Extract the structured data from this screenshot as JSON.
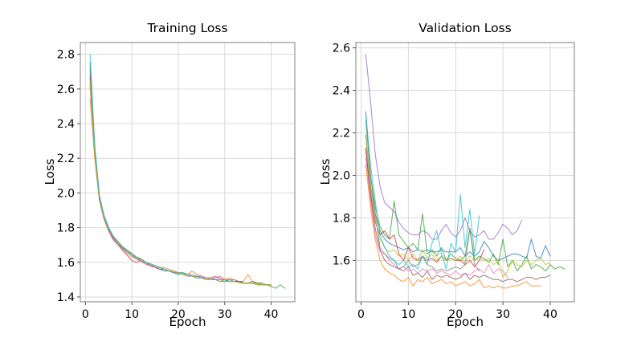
{
  "figure": {
    "background": "#ffffff",
    "grid_color": "#d9d9d9",
    "spine_color": "#7f7f7f",
    "tick_color": "#4d4d4d",
    "text_color": "#000000",
    "line_opacity": 0.72,
    "line_width": 1.1
  },
  "chart_data": [
    {
      "type": "line",
      "title": "Training Loss",
      "xlabel": "Epoch",
      "ylabel": "Loss",
      "xlim": [
        -1.1,
        45.1
      ],
      "ylim": [
        1.372,
        2.868
      ],
      "xticks": [
        0,
        10,
        20,
        30,
        40
      ],
      "xticklabels": [
        "0",
        "10",
        "20",
        "30",
        "40"
      ],
      "yticks": [
        1.4,
        1.6,
        1.8,
        2.0,
        2.2,
        2.4,
        2.6,
        2.8
      ],
      "yticklabels": [
        "1.4",
        "1.6",
        "1.8",
        "2.0",
        "2.2",
        "2.4",
        "2.6",
        "2.8"
      ],
      "grid": true,
      "legend": "none",
      "x_start": 1,
      "series": [
        {
          "color": "#1f77b4",
          "values": [
            2.75,
            2.25,
            1.98,
            1.86,
            1.79,
            1.74,
            1.71,
            1.68,
            1.66,
            1.64,
            1.62,
            1.61,
            1.6,
            1.58,
            1.57,
            1.56,
            1.55,
            1.55,
            1.54,
            1.53,
            1.54,
            1.53,
            1.52,
            1.51,
            1.51,
            1.5,
            1.5,
            1.5,
            1.49,
            1.49,
            1.5,
            1.49,
            1.49,
            1.48,
            1.48,
            1.48,
            1.48,
            1.47,
            1.47,
            1.47
          ]
        },
        {
          "color": "#ff7f0e",
          "values": [
            2.54,
            2.2,
            1.96,
            1.85,
            1.78,
            1.74,
            1.71,
            1.69,
            1.67,
            1.65,
            1.63,
            1.62,
            1.6,
            1.59,
            1.58,
            1.57,
            1.57,
            1.56,
            1.55,
            1.54,
            1.53,
            1.53,
            1.55,
            1.53,
            1.52,
            1.51,
            1.51,
            1.52,
            1.5,
            1.5,
            1.51,
            1.5,
            1.49,
            1.49,
            1.53,
            1.49,
            1.48,
            1.48
          ]
        },
        {
          "color": "#2ca02c",
          "values": [
            2.72,
            2.26,
            1.98,
            1.87,
            1.8,
            1.75,
            1.72,
            1.69,
            1.66,
            1.65,
            1.63,
            1.61,
            1.6,
            1.59,
            1.58,
            1.57,
            1.56,
            1.55,
            1.55,
            1.54,
            1.54,
            1.53,
            1.52,
            1.52,
            1.51,
            1.51,
            1.51,
            1.5,
            1.5,
            1.5,
            1.49,
            1.49,
            1.49,
            1.48,
            1.48,
            1.49,
            1.48,
            1.48,
            1.47,
            1.46,
            1.45,
            1.47,
            1.45
          ]
        },
        {
          "color": "#d62728",
          "values": [
            2.67,
            2.23,
            1.96,
            1.85,
            1.78,
            1.73,
            1.7,
            1.67,
            1.64,
            1.61,
            1.6,
            1.61,
            1.59,
            1.58,
            1.57,
            1.56,
            1.56,
            1.55,
            1.54,
            1.54,
            1.53,
            1.53,
            1.52,
            1.52,
            1.51,
            1.51
          ]
        },
        {
          "color": "#9467bd",
          "values": [
            2.69,
            2.25,
            1.98,
            1.86,
            1.79,
            1.75,
            1.71,
            1.69,
            1.67,
            1.65,
            1.63,
            1.62,
            1.6,
            1.59,
            1.58,
            1.57,
            1.56,
            1.55,
            1.55,
            1.54,
            1.53,
            1.53,
            1.52,
            1.52,
            1.52,
            1.51,
            1.51,
            1.51,
            1.52,
            1.5,
            1.5,
            1.5,
            1.49,
            1.49
          ]
        },
        {
          "color": "#8c564b",
          "values": [
            2.63,
            2.22,
            1.97,
            1.86,
            1.79,
            1.74,
            1.71,
            1.68,
            1.66,
            1.64,
            1.63,
            1.61,
            1.6,
            1.59,
            1.58,
            1.57,
            1.56,
            1.55,
            1.54,
            1.54,
            1.53,
            1.52,
            1.52,
            1.52,
            1.51,
            1.51,
            1.5,
            1.5,
            1.5,
            1.49,
            1.49,
            1.49,
            1.49,
            1.48,
            1.48,
            1.48,
            1.47,
            1.47,
            1.47,
            1.47
          ]
        },
        {
          "color": "#e377c2",
          "values": [
            2.61,
            2.23,
            1.97,
            1.85,
            1.78,
            1.74,
            1.7,
            1.68,
            1.65,
            1.63,
            1.62,
            1.6,
            1.59,
            1.59,
            1.57,
            1.57,
            1.56,
            1.55,
            1.54,
            1.54,
            1.53,
            1.53,
            1.52,
            1.52,
            1.52,
            1.51,
            1.51,
            1.52,
            1.51,
            1.5,
            1.5
          ]
        },
        {
          "color": "#7f7f7f",
          "values": [
            2.66,
            2.24,
            1.97,
            1.86,
            1.79,
            1.74,
            1.71,
            1.68,
            1.66,
            1.64,
            1.62,
            1.61,
            1.6,
            1.59,
            1.58,
            1.57,
            1.56,
            1.55,
            1.55,
            1.54,
            1.53,
            1.53,
            1.52,
            1.52,
            1.51
          ]
        },
        {
          "color": "#bcbd22",
          "values": [
            2.64,
            2.23,
            1.97,
            1.86,
            1.79,
            1.75,
            1.71,
            1.69,
            1.66,
            1.64,
            1.63,
            1.61,
            1.6,
            1.59,
            1.58,
            1.57,
            1.56,
            1.55,
            1.55,
            1.54,
            1.53,
            1.53,
            1.52,
            1.52,
            1.51,
            1.51,
            1.5,
            1.5,
            1.5,
            1.49,
            1.49,
            1.49,
            1.48,
            1.48,
            1.48,
            1.48,
            1.47,
            1.47,
            1.47,
            1.47
          ]
        },
        {
          "color": "#17becf",
          "values": [
            2.8,
            2.28,
            1.99,
            1.87,
            1.8,
            1.75,
            1.72,
            1.69,
            1.67,
            1.65,
            1.63,
            1.62,
            1.6,
            1.59,
            1.58,
            1.57,
            1.56,
            1.55,
            1.54,
            1.53,
            1.54,
            1.53,
            1.53,
            1.52,
            1.52
          ]
        }
      ]
    },
    {
      "type": "line",
      "title": "Validation Loss",
      "xlabel": "Epoch",
      "ylabel": "Loss",
      "xlim": [
        -1.1,
        45.1
      ],
      "ylim": [
        1.405,
        2.625
      ],
      "xticks": [
        0,
        10,
        20,
        30,
        40
      ],
      "xticklabels": [
        "0",
        "10",
        "20",
        "30",
        "40"
      ],
      "yticks": [
        1.6,
        1.8,
        2.0,
        2.2,
        2.4,
        2.6
      ],
      "yticklabels": [
        "1.6",
        "1.8",
        "2.0",
        "2.2",
        "2.4",
        "2.6"
      ],
      "grid": true,
      "legend": "none",
      "x_start": 1,
      "series": [
        {
          "color": "#1f77b4",
          "values": [
            2.19,
            1.95,
            1.82,
            1.74,
            1.7,
            1.68,
            1.67,
            1.66,
            1.65,
            1.66,
            1.64,
            1.65,
            1.64,
            1.65,
            1.64,
            1.64,
            1.65,
            1.64,
            1.64,
            1.64,
            1.66,
            1.62,
            1.64,
            1.62,
            1.64,
            1.69,
            1.66,
            1.62,
            1.6,
            1.61,
            1.62,
            1.63,
            1.63,
            1.62,
            1.61,
            1.7,
            1.62,
            1.61,
            1.67,
            1.62
          ]
        },
        {
          "color": "#ff7f0e",
          "values": [
            2.05,
            1.85,
            1.7,
            1.6,
            1.56,
            1.54,
            1.53,
            1.51,
            1.5,
            1.52,
            1.48,
            1.51,
            1.5,
            1.52,
            1.49,
            1.5,
            1.51,
            1.49,
            1.5,
            1.48,
            1.49,
            1.5,
            1.48,
            1.49,
            1.51,
            1.47,
            1.48,
            1.47,
            1.48,
            1.47,
            1.47,
            1.48,
            1.48,
            1.49,
            1.5,
            1.48,
            1.48,
            1.48
          ]
        },
        {
          "color": "#2ca02c",
          "values": [
            2.26,
            2.0,
            1.85,
            1.76,
            1.72,
            1.7,
            1.88,
            1.72,
            1.69,
            1.66,
            1.68,
            1.65,
            1.82,
            1.63,
            1.65,
            1.62,
            1.66,
            1.6,
            1.63,
            1.61,
            1.6,
            1.62,
            1.75,
            1.6,
            1.62,
            1.61,
            1.59,
            1.63,
            1.58,
            1.7,
            1.57,
            1.6,
            1.55,
            1.58,
            1.62,
            1.56,
            1.58,
            1.57,
            1.55,
            1.58,
            1.56,
            1.57,
            1.56
          ]
        },
        {
          "color": "#d62728",
          "values": [
            2.13,
            1.92,
            1.78,
            1.72,
            1.74,
            1.7,
            1.72,
            1.63,
            1.6,
            1.66,
            1.61,
            1.6,
            1.62,
            1.6,
            1.61,
            1.59,
            1.62,
            1.6,
            1.61,
            1.6,
            1.6,
            1.58,
            1.6,
            1.57,
            1.6,
            1.65
          ]
        },
        {
          "color": "#9467bd",
          "values": [
            2.57,
            2.35,
            2.1,
            1.95,
            1.87,
            1.85,
            1.83,
            1.78,
            1.75,
            1.73,
            1.72,
            1.72,
            1.74,
            1.73,
            1.7,
            1.7,
            1.74,
            1.77,
            1.73,
            1.71,
            1.74,
            1.8,
            1.74,
            1.71,
            1.72,
            1.74,
            1.7,
            1.7,
            1.73,
            1.77,
            1.75,
            1.72,
            1.74,
            1.79
          ]
        },
        {
          "color": "#8c564b",
          "values": [
            2.12,
            1.9,
            1.75,
            1.65,
            1.6,
            1.58,
            1.57,
            1.56,
            1.55,
            1.57,
            1.53,
            1.54,
            1.52,
            1.55,
            1.51,
            1.53,
            1.52,
            1.53,
            1.52,
            1.51,
            1.52,
            1.54,
            1.51,
            1.53,
            1.52,
            1.53,
            1.52,
            1.51,
            1.51,
            1.5,
            1.51,
            1.51,
            1.5,
            1.51,
            1.52,
            1.52,
            1.51,
            1.52,
            1.52,
            1.53
          ]
        },
        {
          "color": "#e377c2",
          "values": [
            2.08,
            1.88,
            1.72,
            1.64,
            1.63,
            1.6,
            1.58,
            1.56,
            1.57,
            1.55,
            1.56,
            1.54,
            1.56,
            1.55,
            1.56,
            1.54,
            1.55,
            1.54,
            1.53,
            1.55,
            1.53,
            1.54,
            1.53,
            1.55,
            1.56,
            1.54,
            1.58,
            1.54,
            1.56,
            1.55,
            1.52
          ]
        },
        {
          "color": "#7f7f7f",
          "values": [
            2.3,
            2.0,
            1.82,
            1.66,
            1.63,
            1.61,
            1.6,
            1.56,
            1.57,
            1.6,
            1.57,
            1.58,
            1.62,
            1.58,
            1.57,
            1.55,
            1.56,
            1.55,
            1.56,
            1.57,
            1.56,
            1.58,
            1.75,
            1.58,
            1.55
          ]
        },
        {
          "color": "#bcbd22",
          "values": [
            2.18,
            1.95,
            1.8,
            1.7,
            1.66,
            1.64,
            1.65,
            1.62,
            1.63,
            1.6,
            1.63,
            1.6,
            1.65,
            1.61,
            1.63,
            1.6,
            1.62,
            1.6,
            1.61,
            1.6,
            1.62,
            1.59,
            1.62,
            1.6,
            1.61,
            1.6,
            1.61,
            1.58,
            1.6,
            1.52,
            1.55,
            1.6,
            1.58,
            1.57,
            1.6,
            1.58,
            1.6,
            1.61,
            1.58,
            1.59
          ]
        },
        {
          "color": "#17becf",
          "values": [
            2.29,
            2.05,
            1.88,
            1.72,
            1.66,
            1.62,
            1.6,
            1.58,
            1.6,
            1.57,
            1.58,
            1.56,
            1.62,
            1.58,
            1.68,
            1.74,
            1.63,
            1.56,
            1.68,
            1.64,
            1.91,
            1.66,
            1.84,
            1.63,
            1.81
          ]
        }
      ]
    }
  ]
}
